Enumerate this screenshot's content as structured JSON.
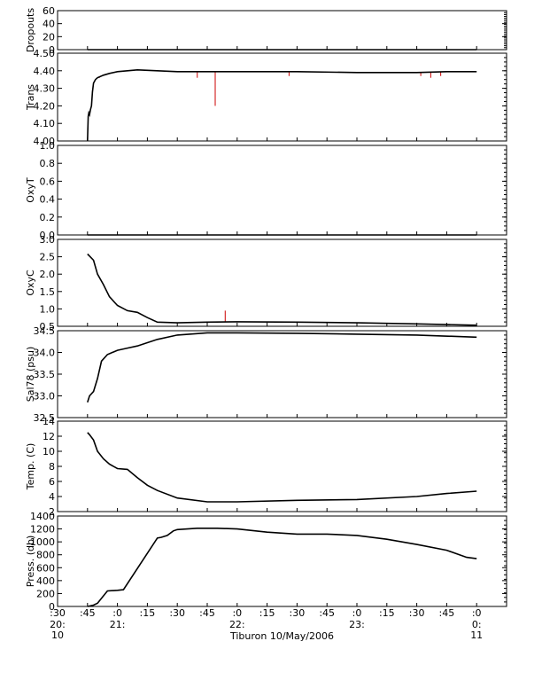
{
  "chart_data": {
    "type": "line",
    "title": "",
    "xlabel": "Tiburon 10/May/2006",
    "x_range": [
      "20:30",
      "00:15"
    ],
    "x_ticks": [
      {
        "t": "20:30",
        "label": ":30",
        "sub": "20:",
        "sub2": "10"
      },
      {
        "t": "20:45",
        "label": ":45"
      },
      {
        "t": "21:00",
        "label": ":0",
        "sub": "21:"
      },
      {
        "t": "21:15",
        "label": ":15"
      },
      {
        "t": "21:30",
        "label": ":30"
      },
      {
        "t": "21:45",
        "label": ":45"
      },
      {
        "t": "22:00",
        "label": ":0",
        "sub": "22:"
      },
      {
        "t": "22:15",
        "label": ":15"
      },
      {
        "t": "22:30",
        "label": ":30"
      },
      {
        "t": "22:45",
        "label": ":45"
      },
      {
        "t": "23:00",
        "label": ":0",
        "sub": "23:"
      },
      {
        "t": "23:15",
        "label": ":15"
      },
      {
        "t": "23:30",
        "label": ":30"
      },
      {
        "t": "23:45",
        "label": ":45"
      },
      {
        "t": "00:00",
        "label": ":0",
        "sub": "0:",
        "sub2": "11"
      }
    ],
    "colors": {
      "line": "#000000",
      "raw": "#cc0000"
    },
    "panels": [
      {
        "id": "dropouts",
        "ylabel": "Dropouts",
        "ylim": [
          0,
          60
        ],
        "ticks": [
          0,
          20,
          40,
          60
        ],
        "tick_labels": [
          "0",
          "20",
          "40",
          "60"
        ],
        "series": [
          {
            "x": [
              "20:45",
              "00:00"
            ],
            "y": [
              0,
              0
            ]
          }
        ]
      },
      {
        "id": "trans",
        "ylabel": "Trans",
        "ylim": [
          4.0,
          4.5
        ],
        "ticks": [
          4.0,
          4.1,
          4.2,
          4.3,
          4.4,
          4.5
        ],
        "tick_labels": [
          "4.00",
          "4.10",
          "4.20",
          "4.30",
          "4.40",
          "4.50"
        ],
        "series": [
          {
            "x": [
              "20:45",
              "20:45:20",
              "20:45:40",
              "20:46",
              "20:46:30",
              "20:47",
              "20:47:30",
              "20:48",
              "20:49",
              "20:50",
              "20:53",
              "20:56",
              "21:00",
              "21:05",
              "21:10",
              "21:30",
              "22:00",
              "22:30",
              "23:00",
              "23:30",
              "23:45",
              "00:00"
            ],
            "y": [
              4.0,
              4.14,
              4.16,
              4.15,
              4.18,
              4.2,
              4.28,
              4.33,
              4.35,
              4.36,
              4.375,
              4.385,
              4.395,
              4.4,
              4.405,
              4.395,
              4.395,
              4.395,
              4.39,
              4.39,
              4.395,
              4.395
            ]
          }
        ],
        "spikes": [
          {
            "x": "20:51",
            "y": 4.36
          },
          {
            "x": "21:40",
            "y": 4.36
          },
          {
            "x": "21:49",
            "y": 4.2
          },
          {
            "x": "22:26",
            "y": 4.37
          },
          {
            "x": "23:32",
            "y": 4.37
          },
          {
            "x": "23:37",
            "y": 4.36
          },
          {
            "x": "23:42",
            "y": 4.37
          }
        ]
      },
      {
        "id": "oxyt",
        "ylabel": "OxyT",
        "ylim": [
          0,
          1.0
        ],
        "ticks": [
          0.0,
          0.2,
          0.4,
          0.6,
          0.8,
          1.0
        ],
        "tick_labels": [
          "0.0",
          "0.2",
          "0.4",
          "0.6",
          "0.8",
          "1.0"
        ],
        "series": [
          {
            "x": [
              "20:45",
              "00:00"
            ],
            "y": [
              0,
              0
            ]
          }
        ]
      },
      {
        "id": "oxyc",
        "ylabel": "OxyC",
        "ylim": [
          0.5,
          3.0
        ],
        "ticks": [
          0.5,
          1.0,
          1.5,
          2.0,
          2.5,
          3.0
        ],
        "tick_labels": [
          "0.5",
          "1.0",
          "1.5",
          "2.0",
          "2.5",
          "3.0"
        ],
        "series": [
          {
            "x": [
              "20:45",
              "20:46",
              "20:48",
              "20:50",
              "20:53",
              "20:56",
              "21:00",
              "21:05",
              "21:10",
              "21:15",
              "21:20",
              "21:30",
              "21:45",
              "22:00",
              "22:30",
              "23:00",
              "23:30",
              "00:00"
            ],
            "y": [
              2.58,
              2.52,
              2.4,
              2.0,
              1.7,
              1.35,
              1.1,
              0.95,
              0.9,
              0.75,
              0.62,
              0.6,
              0.62,
              0.63,
              0.62,
              0.6,
              0.57,
              0.53
            ]
          }
        ],
        "spikes": [
          {
            "x": "21:54",
            "y": 0.95
          }
        ]
      },
      {
        "id": "sal78",
        "ylabel": "Sal78 (psu)",
        "ylim": [
          32.5,
          34.5
        ],
        "ticks": [
          32.5,
          33.0,
          33.5,
          34.0,
          34.5
        ],
        "tick_labels": [
          "32.5",
          "33.0",
          "33.5",
          "34.0",
          "34.5"
        ],
        "series": [
          {
            "x": [
              "20:45",
              "20:46",
              "20:48",
              "20:50",
              "20:52",
              "20:55",
              "21:00",
              "21:05",
              "21:10",
              "21:20",
              "21:30",
              "21:45",
              "22:00",
              "22:30",
              "23:00",
              "23:30",
              "00:00"
            ],
            "y": [
              32.85,
              33.0,
              33.1,
              33.4,
              33.8,
              33.95,
              34.05,
              34.1,
              34.15,
              34.3,
              34.4,
              34.45,
              34.45,
              34.44,
              34.42,
              34.4,
              34.35
            ]
          }
        ]
      },
      {
        "id": "temp",
        "ylabel": "Temp. (C)",
        "ylim": [
          2,
          14
        ],
        "ticks": [
          2,
          4,
          6,
          8,
          10,
          12,
          14
        ],
        "tick_labels": [
          "2",
          "4",
          "6",
          "8",
          "10",
          "12",
          "14"
        ],
        "series": [
          {
            "x": [
              "20:45",
              "20:46",
              "20:48",
              "20:50",
              "20:53",
              "20:56",
              "21:00",
              "21:05",
              "21:10",
              "21:15",
              "21:20",
              "21:30",
              "21:45",
              "22:00",
              "22:30",
              "23:00",
              "23:30",
              "23:45",
              "00:00"
            ],
            "y": [
              12.5,
              12.2,
              11.5,
              10.0,
              9.0,
              8.3,
              7.7,
              7.6,
              6.5,
              5.5,
              4.8,
              3.8,
              3.3,
              3.3,
              3.5,
              3.6,
              4.0,
              4.4,
              4.7
            ]
          }
        ]
      },
      {
        "id": "press",
        "ylabel": "Press. (db)",
        "ylim": [
          0,
          1400
        ],
        "ticks": [
          0,
          200,
          400,
          600,
          800,
          1000,
          1200,
          1400
        ],
        "tick_labels": [
          "0",
          "200",
          "400",
          "600",
          "800",
          "1000",
          "1200",
          "1400"
        ],
        "series": [
          {
            "x": [
              "20:45",
              "20:48",
              "20:50",
              "20:55",
              "21:00",
              "21:03",
              "21:20",
              "21:22",
              "21:25",
              "21:28",
              "21:30",
              "21:35",
              "21:40",
              "21:50",
              "22:00",
              "22:15",
              "22:30",
              "22:45",
              "23:00",
              "23:15",
              "23:30",
              "23:45",
              "23:55",
              "00:00"
            ],
            "y": [
              0,
              20,
              50,
              240,
              250,
              260,
              1060,
              1070,
              1100,
              1170,
              1190,
              1200,
              1210,
              1210,
              1200,
              1150,
              1120,
              1120,
              1100,
              1040,
              960,
              870,
              760,
              740
            ]
          }
        ]
      }
    ]
  }
}
